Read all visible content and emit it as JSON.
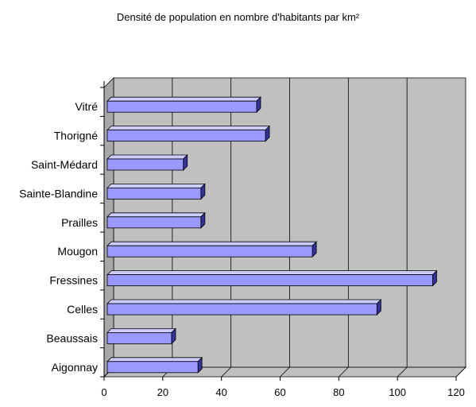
{
  "chart_data": {
    "type": "bar",
    "orientation": "horizontal",
    "title": "Densité de population en nombre d'habitants par km²",
    "xlabel": "",
    "ylabel": "",
    "categories": [
      "Vitré",
      "Thorigné",
      "Saint-Médard",
      "Sainte-Blandine",
      "Prailles",
      "Mougon",
      "Fressines",
      "Celles",
      "Beaussais",
      "Aigonnay"
    ],
    "values": [
      52,
      55,
      27,
      33,
      33,
      71,
      112,
      93,
      23,
      32
    ],
    "xlim": [
      0,
      120
    ],
    "xticks": [
      "0",
      "20",
      "40",
      "60",
      "80",
      "100",
      "120"
    ],
    "grid": true,
    "legend": "none",
    "colors": {
      "bar_front": "#9999ff",
      "bar_top": "#ccccff",
      "bar_side": "#333399",
      "wall": "#c0c0c0",
      "floor": "#bfbfbf",
      "grid": "#000000"
    }
  }
}
